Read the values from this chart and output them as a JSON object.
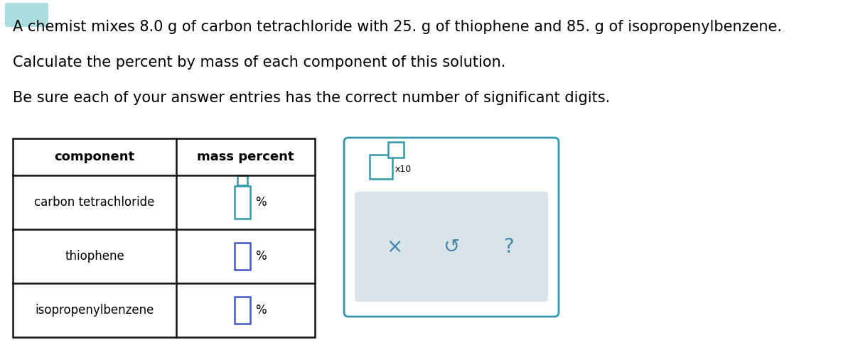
{
  "title_line1": "A chemist mixes 8.0 g of carbon tetrachloride with 25. g of thiophene and 85. g of isopropenylbenzene.",
  "title_line2": "Calculate the percent by mass of each component of this solution.",
  "title_line3": "Be sure each of your answer entries has the correct number of significant digits.",
  "table_headers": [
    "component",
    "mass percent"
  ],
  "table_rows": [
    "carbon tetrachloride",
    "thiophene",
    "isopropenylbenzene"
  ],
  "bg_color": "#ffffff",
  "table_border_color": "#111111",
  "text_color": "#000000",
  "font_size_body": 15,
  "font_size_table_header": 13,
  "font_size_table_row": 12,
  "teal_color": "#3399aa",
  "blue_color": "#4455cc",
  "accent_top_color": "#aadddd",
  "panel_gray_color": "#d8e4e8",
  "icon_color": "#4488aa"
}
